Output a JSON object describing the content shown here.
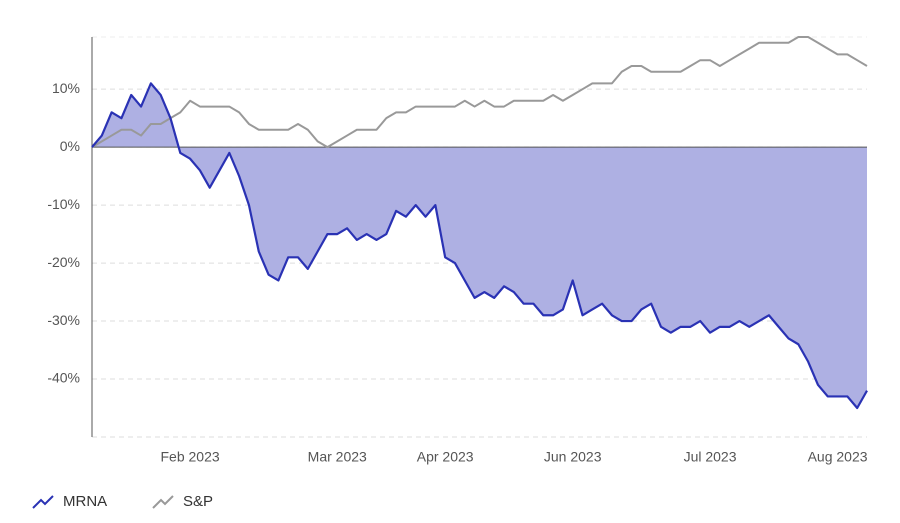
{
  "chart_data": {
    "type": "line",
    "categories": [
      null,
      null,
      null,
      null,
      null,
      null,
      null,
      null,
      null,
      null,
      "Feb 2023",
      null,
      null,
      null,
      null,
      null,
      null,
      null,
      null,
      null,
      null,
      null,
      null,
      null,
      null,
      "Mar 2023",
      null,
      null,
      null,
      null,
      null,
      null,
      null,
      null,
      null,
      null,
      "Apr 2023",
      null,
      null,
      null,
      null,
      null,
      null,
      null,
      null,
      null,
      null,
      null,
      null,
      "Jun 2023",
      null,
      null,
      null,
      null,
      null,
      null,
      null,
      null,
      null,
      null,
      null,
      null,
      null,
      "Jul 2023",
      null,
      null,
      null,
      null,
      null,
      null,
      null,
      null,
      null,
      null,
      null,
      null,
      "Aug 2023",
      null,
      null,
      null
    ],
    "series": [
      {
        "name": "MRNA",
        "color": "#2a32b4",
        "fill": "#aeb0e3",
        "values": [
          0,
          2,
          6,
          5,
          9,
          7,
          11,
          9,
          5,
          -1,
          -2,
          -4,
          -7,
          -4,
          -1,
          -5,
          -10,
          -18,
          -22,
          -23,
          -19,
          -19,
          -21,
          -18,
          -15,
          -15,
          -14,
          -16,
          -15,
          -16,
          -15,
          -11,
          -12,
          -10,
          -12,
          -10,
          -19,
          -20,
          -23,
          -26,
          -25,
          -26,
          -24,
          -25,
          -27,
          -27,
          -29,
          -29,
          -28,
          -23,
          -29,
          -28,
          -27,
          -29,
          -30,
          -30,
          -28,
          -27,
          -31,
          -32,
          -31,
          -31,
          -30,
          -32,
          -31,
          -31,
          -30,
          -31,
          -30,
          -29,
          -31,
          -33,
          -34,
          -37,
          -41,
          -43,
          -43,
          -43,
          -45,
          -42
        ]
      },
      {
        "name": "S&P",
        "color": "#999999",
        "values": [
          0,
          1,
          2,
          3,
          3,
          2,
          4,
          4,
          5,
          6,
          8,
          7,
          7,
          7,
          7,
          6,
          4,
          3,
          3,
          3,
          3,
          4,
          3,
          1,
          0,
          1,
          2,
          3,
          3,
          3,
          5,
          6,
          6,
          7,
          7,
          7,
          7,
          7,
          8,
          7,
          8,
          7,
          7,
          8,
          8,
          8,
          8,
          9,
          8,
          9,
          10,
          11,
          11,
          11,
          13,
          14,
          14,
          13,
          13,
          13,
          13,
          14,
          15,
          15,
          14,
          15,
          16,
          17,
          18,
          18,
          18,
          18,
          19,
          19,
          18,
          17,
          16,
          16,
          15,
          14
        ]
      }
    ],
    "ylim": [
      -50,
      19
    ],
    "yticks": [
      {
        "value": -40,
        "label": "-40%"
      },
      {
        "value": -30,
        "label": "-30%"
      },
      {
        "value": -20,
        "label": "-20%"
      },
      {
        "value": -10,
        "label": "-10%"
      },
      {
        "value": 0,
        "label": "0%"
      },
      {
        "value": 10,
        "label": "10%"
      }
    ],
    "grid": true
  }
}
